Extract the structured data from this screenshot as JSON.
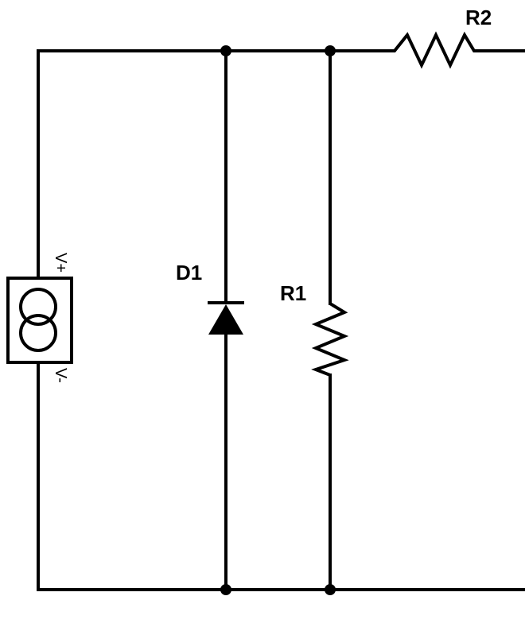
{
  "diagram": {
    "components": {
      "source": {
        "plus_label": "V+",
        "minus_label": "V-"
      },
      "diode": {
        "label": "D1"
      },
      "resistor_1": {
        "label": "R1"
      },
      "resistor_2": {
        "label": "R2"
      }
    }
  }
}
